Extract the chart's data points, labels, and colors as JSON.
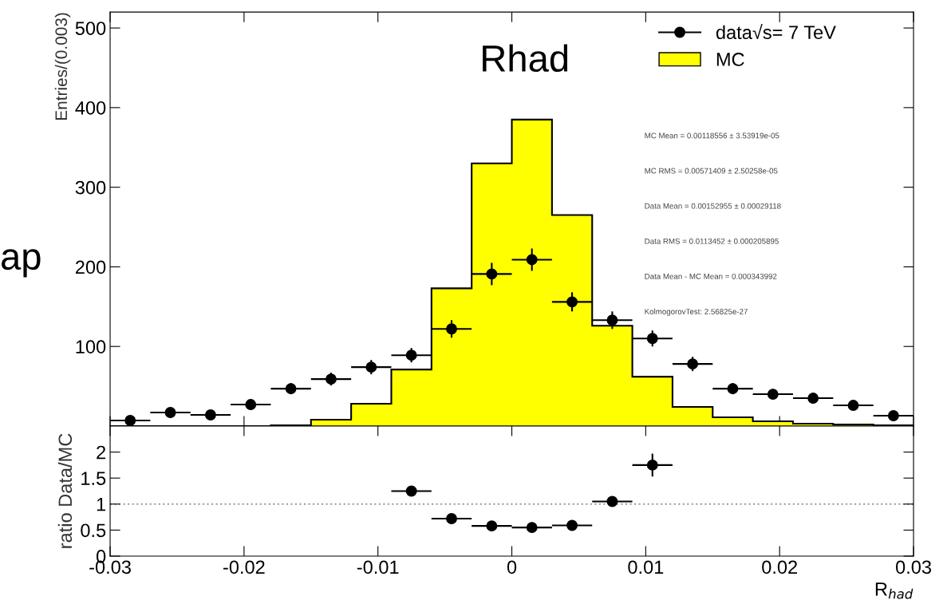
{
  "chart_data": [
    {
      "type": "histogram",
      "ylabel": "Entries/(0.003)",
      "xlim": [
        -0.03,
        0.03
      ],
      "ylim": [
        0,
        520
      ],
      "yticks": [
        100,
        200,
        300,
        400,
        500
      ],
      "tick_labels": "y",
      "legend": "top right",
      "grid": false,
      "bins": [
        -0.03,
        -0.027,
        -0.024,
        -0.021,
        -0.018,
        -0.015,
        -0.012,
        -0.009,
        -0.006,
        -0.003,
        0,
        0.003,
        0.006,
        0.009,
        0.012,
        0.015,
        0.018,
        0.021,
        0.024,
        0.027,
        0.03
      ],
      "series": [
        {
          "name": "data√s= 7 TeV",
          "type": "scatter",
          "color": "#000000",
          "marker": "circle",
          "x": [
            -0.0285,
            -0.0255,
            -0.0225,
            -0.0195,
            -0.0165,
            -0.0135,
            -0.0105,
            -0.0075,
            -0.0045,
            -0.0015,
            0.0015,
            0.0045,
            0.0075,
            0.0105,
            0.0135,
            0.0165,
            0.0195,
            0.0225,
            0.0255,
            0.0285
          ],
          "values": [
            7,
            17,
            14,
            27,
            47,
            59,
            74,
            89,
            122,
            191,
            209,
            156,
            133,
            110,
            78,
            47,
            40,
            35,
            26,
            13
          ],
          "errors": [
            3,
            4,
            4,
            5,
            7,
            8,
            9,
            9,
            11,
            14,
            14,
            12,
            11,
            10,
            9,
            7,
            6,
            6,
            5,
            4
          ],
          "xerrors": [
            0.0015,
            0.0015,
            0.0015,
            0.0015,
            0.0015,
            0.0015,
            0.0015,
            0.0015,
            0.0015,
            0.0015,
            0.0015,
            0.0015,
            0.0015,
            0.0015,
            0.0015,
            0.0015,
            0.0015,
            0.0015,
            0.0015,
            0.0015
          ]
        },
        {
          "name": "MC",
          "type": "histogram",
          "color": "#ffff00",
          "values": [
            0,
            0,
            0,
            0,
            1,
            8,
            28,
            71,
            173,
            330,
            385,
            265,
            126,
            62,
            24,
            11,
            6,
            3,
            2,
            1
          ]
        }
      ],
      "annotations": [
        "Rhad",
        "MC Mean = 0.00118556 ± 3.53919e-05",
        "MC RMS = 0.00571409 ± 2.50258e-05",
        "Data Mean = 0.00152955 ± 0.00029118",
        "Data RMS = 0.0113452 ± 0.000205895",
        "Data Mean - MC Mean = 0.000343992",
        "KolmogorovTest: 2.56825e-27",
        "ap"
      ]
    },
    {
      "type": "scatter",
      "xlabel": "R$_{had}$",
      "ylabel": "ratio Data/MC",
      "xlim": [
        -0.03,
        0.03
      ],
      "ylim": [
        0,
        2.5
      ],
      "xticks": [
        -0.03,
        -0.02,
        -0.01,
        0,
        0.01,
        0.02,
        0.03
      ],
      "yticks": [
        0,
        0.5,
        1,
        1.5,
        2
      ],
      "grid": false,
      "marker": "circle",
      "x": [
        -0.0075,
        -0.0045,
        -0.0015,
        0.0015,
        0.0045,
        0.0075,
        0.0105
      ],
      "series": [
        {
          "color": "#000000",
          "values": [
            1.25,
            0.72,
            0.58,
            0.55,
            0.59,
            1.05,
            1.75
          ],
          "errors": [
            0.08,
            0.05,
            0.04,
            0.04,
            0.05,
            0.05,
            0.22
          ],
          "xerrors": [
            0.0015,
            0.0015,
            0.0015,
            0.0015,
            0.0015,
            0.0015,
            0.0015
          ]
        }
      ],
      "ref_lines": [
        {
          "axis": "y",
          "value": 1,
          "color": "#999999",
          "line_style": "dotted"
        }
      ]
    }
  ]
}
